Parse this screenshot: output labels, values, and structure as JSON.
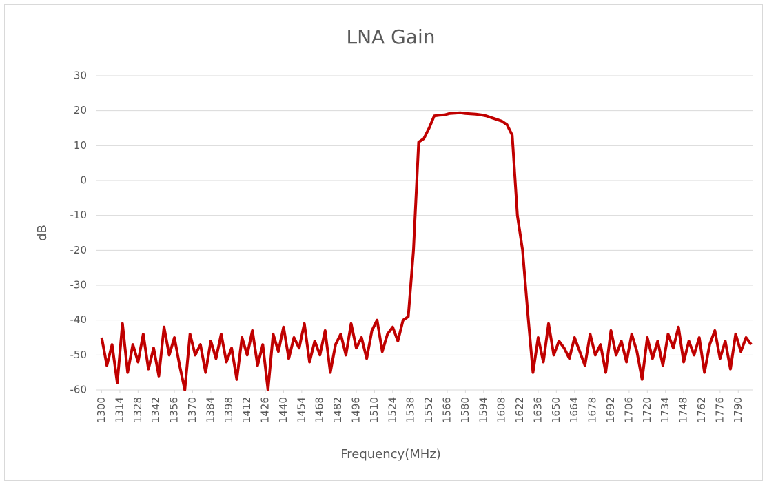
{
  "chart_data": {
    "type": "line",
    "title": "LNA Gain",
    "x_label": "Frequency(MHz)",
    "y_label": "dB",
    "x": [
      1300,
      1304,
      1308,
      1312,
      1316,
      1320,
      1324,
      1328,
      1332,
      1336,
      1340,
      1344,
      1348,
      1352,
      1356,
      1360,
      1364,
      1368,
      1372,
      1376,
      1380,
      1384,
      1388,
      1392,
      1396,
      1400,
      1404,
      1408,
      1412,
      1416,
      1420,
      1424,
      1428,
      1432,
      1436,
      1440,
      1444,
      1448,
      1452,
      1456,
      1460,
      1464,
      1468,
      1472,
      1476,
      1480,
      1484,
      1488,
      1492,
      1496,
      1500,
      1504,
      1508,
      1512,
      1516,
      1520,
      1524,
      1528,
      1532,
      1536,
      1540,
      1544,
      1548,
      1552,
      1556,
      1560,
      1564,
      1568,
      1572,
      1576,
      1580,
      1584,
      1588,
      1592,
      1596,
      1600,
      1604,
      1608,
      1612,
      1616,
      1620,
      1624,
      1628,
      1632,
      1636,
      1640,
      1644,
      1648,
      1652,
      1656,
      1660,
      1664,
      1668,
      1672,
      1676,
      1680,
      1684,
      1688,
      1692,
      1696,
      1700,
      1704,
      1708,
      1712,
      1716,
      1720,
      1724,
      1728,
      1732,
      1736,
      1740,
      1744,
      1748,
      1752,
      1756,
      1760,
      1764,
      1768,
      1772,
      1776,
      1780,
      1784,
      1788,
      1792,
      1796,
      1800
    ],
    "series": [
      {
        "name": "Gain",
        "color": "#c00000",
        "values": [
          -45,
          -53,
          -47,
          -58,
          -41,
          -55,
          -47,
          -52,
          -44,
          -54,
          -48,
          -56,
          -42,
          -50,
          -45,
          -53,
          -60,
          -44,
          -50,
          -47,
          -55,
          -46,
          -51,
          -44,
          -52,
          -48,
          -57,
          -45,
          -50,
          -43,
          -53,
          -47,
          -60,
          -44,
          -49,
          -42,
          -51,
          -45,
          -48,
          -41,
          -52,
          -46,
          -50,
          -43,
          -55,
          -47,
          -44,
          -50,
          -41,
          -48,
          -45,
          -51,
          -43,
          -40,
          -49,
          -44,
          -42,
          -46,
          -40,
          -39,
          -20,
          11,
          12,
          15,
          18.5,
          18.7,
          18.8,
          19.2,
          19.3,
          19.4,
          19.2,
          19.1,
          19,
          18.8,
          18.5,
          18,
          17.5,
          17,
          16,
          13,
          -10,
          -20,
          -38,
          -55,
          -45,
          -52,
          -41,
          -50,
          -46,
          -48,
          -51,
          -45,
          -49,
          -53,
          -44,
          -50,
          -47,
          -55,
          -43,
          -50,
          -46,
          -52,
          -44,
          -49,
          -57,
          -45,
          -51,
          -46,
          -53,
          -44,
          -48,
          -42,
          -52,
          -46,
          -50,
          -45,
          -55,
          -47,
          -43,
          -51,
          -46,
          -54,
          -44,
          -49,
          -45,
          -47
        ]
      }
    ],
    "xlim": [
      1296,
      1801
    ],
    "xticks": [
      1300,
      1314,
      1328,
      1342,
      1356,
      1370,
      1384,
      1398,
      1412,
      1426,
      1440,
      1454,
      1468,
      1482,
      1496,
      1510,
      1524,
      1538,
      1552,
      1566,
      1580,
      1594,
      1608,
      1622,
      1636,
      1650,
      1664,
      1678,
      1692,
      1706,
      1720,
      1734,
      1748,
      1762,
      1776,
      1790
    ],
    "ylim": [
      -60,
      30
    ],
    "yticks": [
      -60,
      -50,
      -40,
      -30,
      -20,
      -10,
      0,
      10,
      20,
      30
    ],
    "grid": true
  }
}
